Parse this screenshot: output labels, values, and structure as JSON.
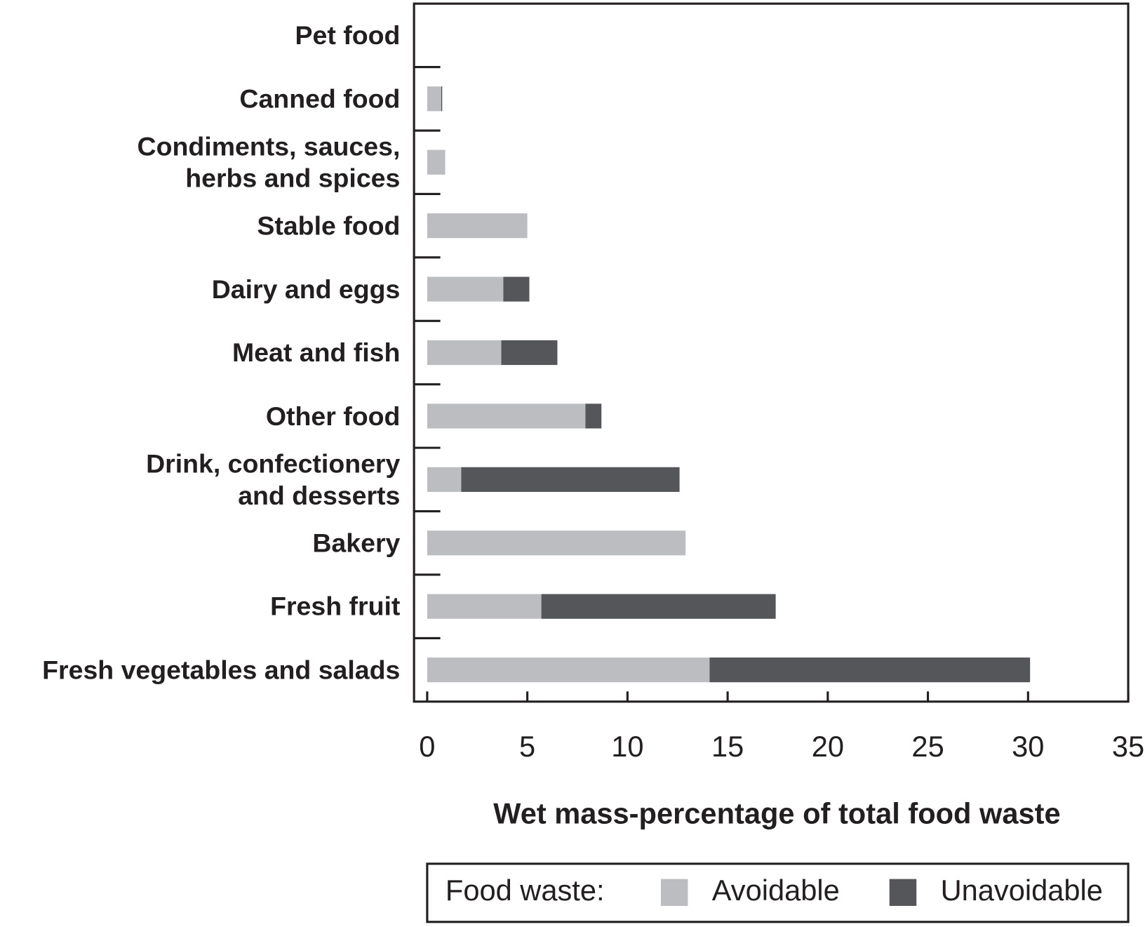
{
  "chart_data": {
    "type": "stacked-barh",
    "categories": [
      "Pet food",
      "Canned food",
      "Condiments, sauces,\nherbs and spices",
      "Stable food",
      "Dairy and eggs",
      "Meat and fish",
      "Other food",
      "Drink, confectionery\nand desserts",
      "Bakery",
      "Fresh fruit",
      "Fresh vegetables and salads"
    ],
    "series": [
      {
        "name": "Avoidable",
        "color": "#bcbdc0",
        "values": [
          0,
          0.7,
          0.9,
          5.0,
          3.8,
          3.7,
          7.9,
          1.7,
          12.9,
          5.7,
          14.1
        ]
      },
      {
        "name": "Unavoidable",
        "color": "#55565a",
        "values": [
          0,
          0.05,
          0,
          0,
          1.3,
          2.8,
          0.8,
          10.9,
          0,
          11.7,
          16.0
        ]
      }
    ],
    "xlim": [
      0,
      35
    ],
    "xticks": [
      0,
      5,
      10,
      15,
      20,
      25,
      30,
      35
    ],
    "x_label": "Wet mass-percentage of total food waste",
    "legend_title": "Food waste:"
  }
}
